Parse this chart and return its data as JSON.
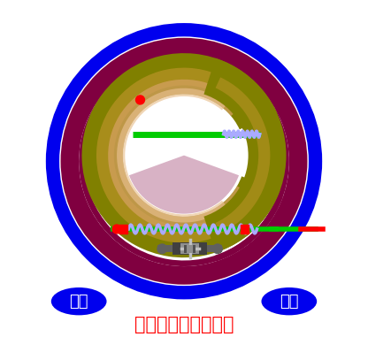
{
  "bg_color": "#ffffff",
  "title": "鼓式驻车制动器动画",
  "title_color": "#ff0000",
  "title_fontsize": 15,
  "label_left": "驻车",
  "label_right": "解除",
  "label_color": "#ffffff",
  "label_bg": "#0000ee",
  "outer_ring_color": "#0000ee",
  "drum_color": "#800040",
  "shoe_dark": "#808000",
  "shoe_mid": "#b09020",
  "shoe_light": "#d4a060",
  "shoe_lightest": "#e8c090",
  "spring_color": "#aaaaff",
  "rod_color": "#00cc00",
  "red_color": "#ff0000",
  "anchor_dark": "#404040",
  "anchor_mid": "#606060",
  "anchor_light": "#909090"
}
